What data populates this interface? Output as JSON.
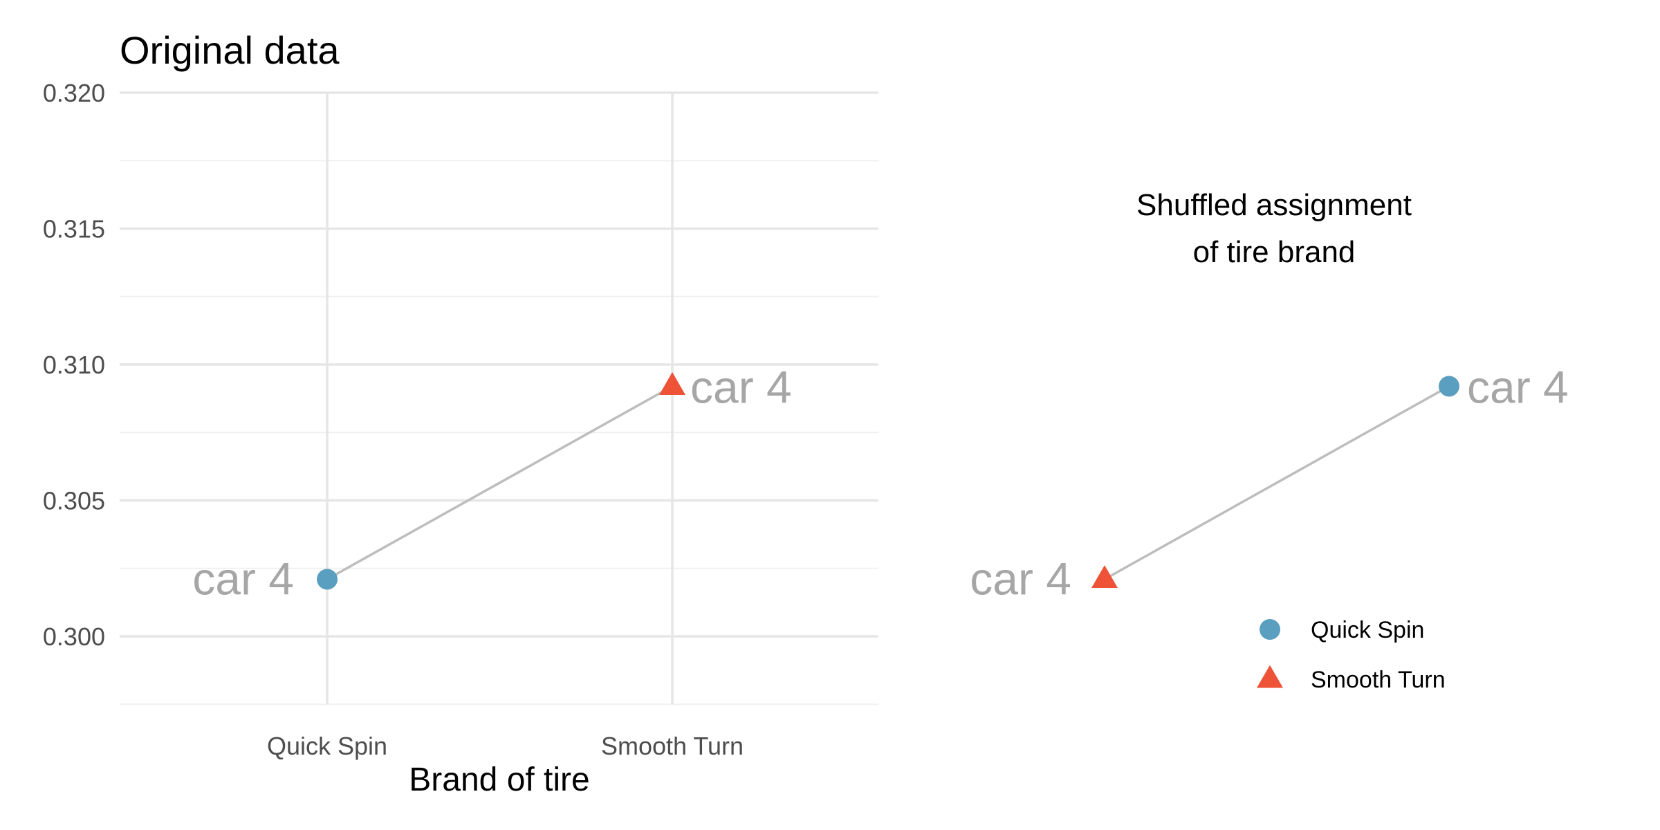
{
  "colors": {
    "quick_spin": "#5A9EC0",
    "smooth_turn": "#EE5237",
    "connector": "#bdbdbd",
    "grid_major": "#e6e6e6",
    "grid_minor": "#f0f0f0",
    "point_label": "#a6a6a6"
  },
  "chart_data": [
    {
      "type": "scatter",
      "title": "Original data",
      "xlabel": "Brand of tire",
      "ylabel": "",
      "categories": [
        "Quick Spin",
        "Smooth Turn"
      ],
      "ylim": [
        0.2975,
        0.3205
      ],
      "yticks": [
        "0.300",
        "0.305",
        "0.310",
        "0.315",
        "0.320"
      ],
      "ytick_values": [
        0.3,
        0.305,
        0.31,
        0.315,
        0.32
      ],
      "grid": true,
      "points": [
        {
          "label": "car 4",
          "category": "Quick Spin",
          "brand": "Quick Spin",
          "y": 0.3021,
          "marker": "circle"
        },
        {
          "label": "car 4",
          "category": "Smooth Turn",
          "brand": "Smooth Turn",
          "y": 0.3092,
          "marker": "triangle"
        }
      ]
    },
    {
      "type": "scatter",
      "title": "Shuffled assignment of tire brand",
      "title_lines": [
        "Shuffled assignment",
        "of tire brand"
      ],
      "grid": false,
      "axes": false,
      "ylim": [
        0.2975,
        0.3205
      ],
      "points": [
        {
          "label": "car 4",
          "position": 1,
          "brand": "Smooth Turn",
          "y": 0.3021,
          "marker": "triangle"
        },
        {
          "label": "car 4",
          "position": 2,
          "brand": "Quick Spin",
          "y": 0.3092,
          "marker": "circle"
        }
      ],
      "legend": {
        "placement": "bottom-right",
        "entries": [
          {
            "name": "Quick Spin",
            "marker": "circle"
          },
          {
            "name": "Smooth Turn",
            "marker": "triangle"
          }
        ]
      }
    }
  ]
}
